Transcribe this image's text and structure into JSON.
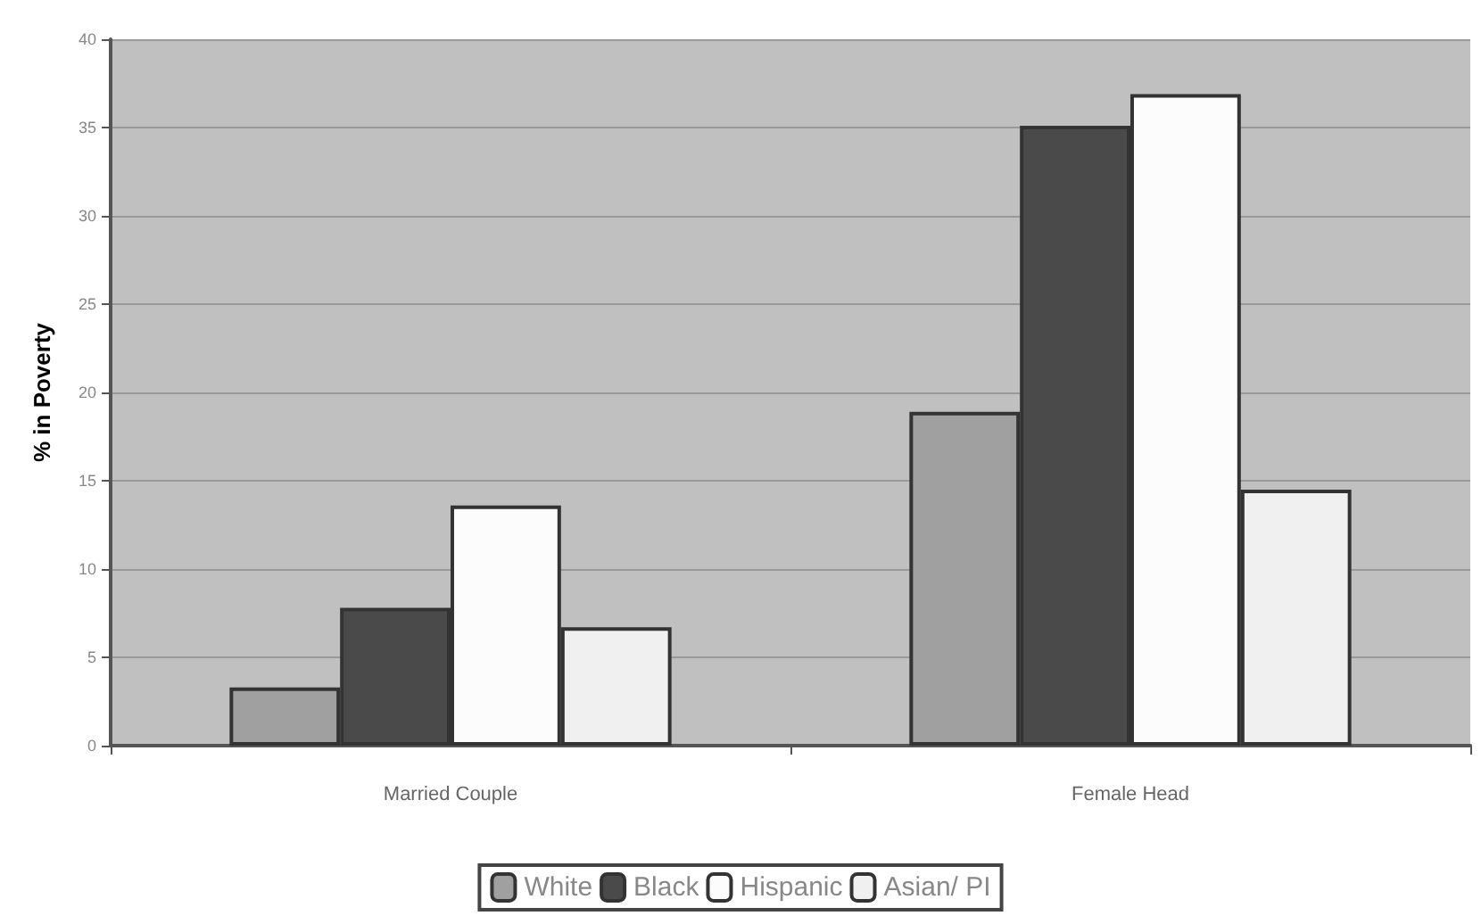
{
  "chart_data": {
    "type": "bar",
    "ylabel": "% in Poverty",
    "categories": [
      "Married Couple",
      "Female Head"
    ],
    "series": [
      {
        "name": "White",
        "color": "#a0a0a0",
        "values": [
          3.3,
          18.9
        ]
      },
      {
        "name": "Black",
        "color": "#4a4a4a",
        "values": [
          7.8,
          35.1
        ]
      },
      {
        "name": "Hispanic",
        "color": "#fcfcfc",
        "values": [
          13.6,
          36.9
        ]
      },
      {
        "name": "Asian/ PI",
        "color": "#f0f0f0",
        "values": [
          6.7,
          14.5
        ]
      }
    ],
    "ylim": [
      0,
      40
    ],
    "yticks": [
      0,
      5,
      10,
      15,
      20,
      25,
      30,
      35,
      40
    ],
    "grid": "y",
    "legend": "bottom"
  }
}
